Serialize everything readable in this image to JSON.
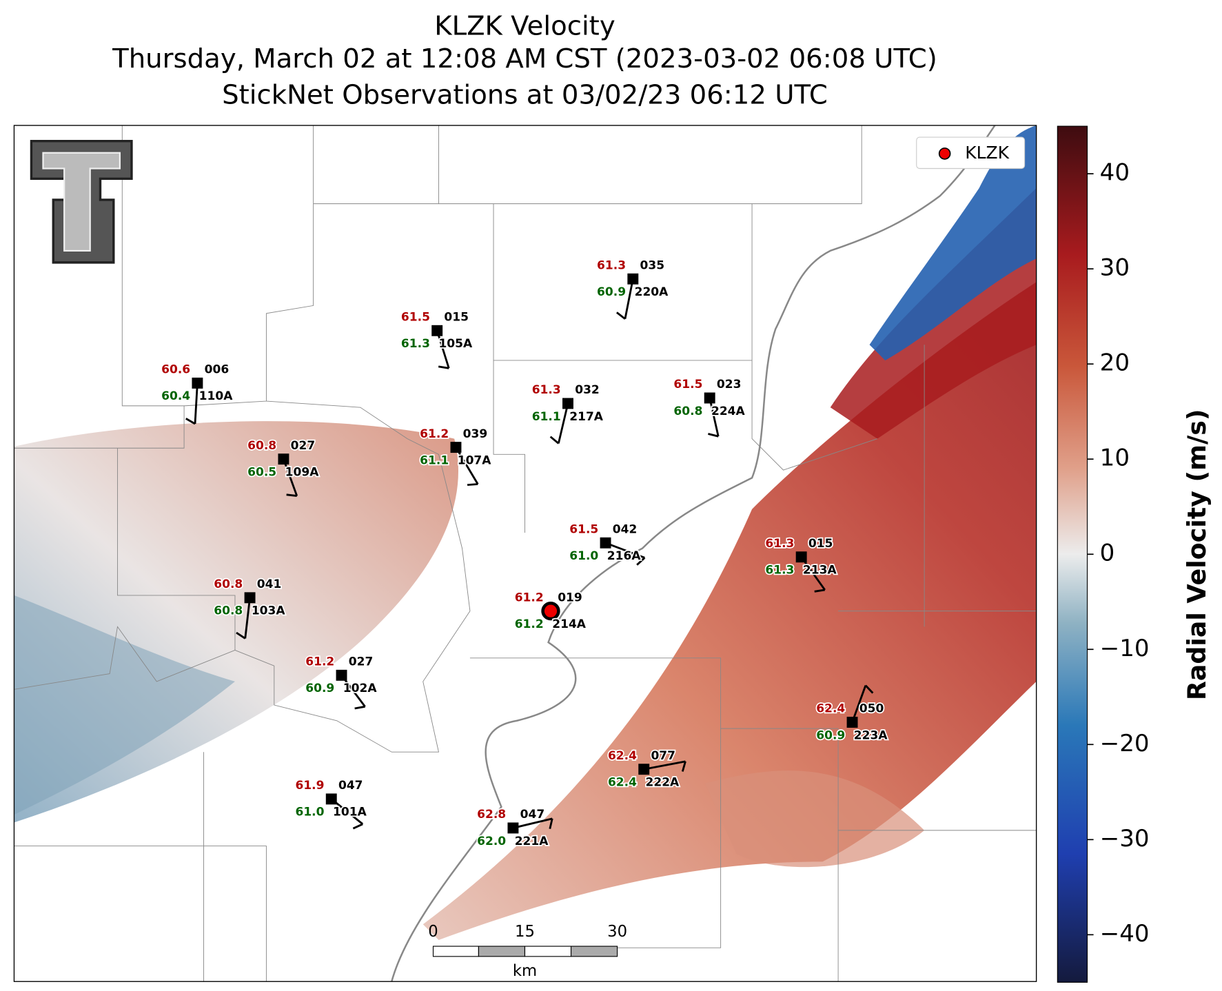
{
  "header": {
    "title_line1": "KLZK Velocity",
    "title_line2": "Thursday, March 02 at 12:08 AM CST (2023-03-02 06:08 UTC)",
    "title_line3": "StickNet Observations at 03/02/23 06:12 UTC"
  },
  "colorbar": {
    "label": "Radial Velocity (m/s)",
    "lim": [
      -45,
      45
    ],
    "ticks": [
      {
        "value": -40,
        "label": "−40"
      },
      {
        "value": -30,
        "label": "−30"
      },
      {
        "value": -20,
        "label": "−20"
      },
      {
        "value": -10,
        "label": "−10"
      },
      0,
      10,
      20,
      30,
      40
    ]
  },
  "legend": {
    "label": "KLZK"
  },
  "scale_bar": {
    "ticks": [
      "0",
      "15",
      "30"
    ],
    "unit": "km"
  },
  "stations": [
    {
      "temperature": "61.3",
      "dewpoint": "60.9",
      "wind": "035",
      "id": "220A"
    },
    {
      "temperature": "61.5",
      "dewpoint": "61.3",
      "wind": "015",
      "id": "105A"
    },
    {
      "temperature": "60.6",
      "dewpoint": "60.4",
      "wind": "006",
      "id": "110A"
    },
    {
      "temperature": "61.3",
      "dewpoint": "61.1",
      "wind": "032",
      "id": "217A"
    },
    {
      "temperature": "61.5",
      "dewpoint": "60.8",
      "wind": "023",
      "id": "224A"
    },
    {
      "temperature": "61.2",
      "dewpoint": "61.1",
      "wind": "039",
      "id": "107A"
    },
    {
      "temperature": "60.8",
      "dewpoint": "60.5",
      "wind": "027",
      "id": "109A"
    },
    {
      "temperature": "61.5",
      "dewpoint": "61.0",
      "wind": "042",
      "id": "216A"
    },
    {
      "temperature": "61.3",
      "dewpoint": "61.3",
      "wind": "015",
      "id": "213A"
    },
    {
      "temperature": "60.8",
      "dewpoint": "60.8",
      "wind": "041",
      "id": "103A"
    },
    {
      "temperature": "61.2",
      "dewpoint": "61.2",
      "wind": "019",
      "id": "214A"
    },
    {
      "temperature": "61.2",
      "dewpoint": "60.9",
      "wind": "027",
      "id": "102A"
    },
    {
      "temperature": "62.4",
      "dewpoint": "60.9",
      "wind": "050",
      "id": "223A"
    },
    {
      "temperature": "62.4",
      "dewpoint": "62.4",
      "wind": "077",
      "id": "222A"
    },
    {
      "temperature": "61.9",
      "dewpoint": "61.0",
      "wind": "047",
      "id": "101A"
    },
    {
      "temperature": "62.8",
      "dewpoint": "62.0",
      "wind": "047",
      "id": "221A"
    }
  ]
}
